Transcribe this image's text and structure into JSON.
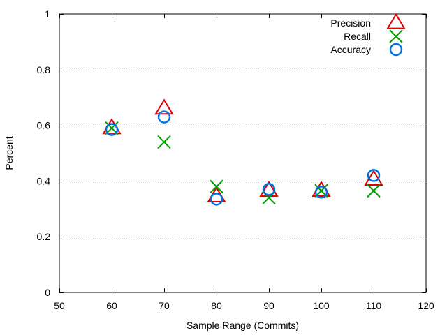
{
  "chart_data": {
    "type": "scatter",
    "title": "",
    "xlabel": "Sample Range (Commits)",
    "ylabel": "Percent",
    "xlim": [
      50,
      120
    ],
    "ylim": [
      0,
      1
    ],
    "x_ticks": [
      50,
      60,
      70,
      80,
      90,
      100,
      110,
      120
    ],
    "y_ticks": [
      0,
      0.2,
      0.4,
      0.6,
      0.8,
      1
    ],
    "x_tick_labels": [
      "50",
      "60",
      "70",
      "80",
      "90",
      "100",
      "110",
      "120"
    ],
    "y_tick_labels": [
      "0",
      "0.2",
      "0.4",
      "0.6",
      "0.8",
      "1"
    ],
    "grid": "horizontal-dotted",
    "legend_position": "top-right",
    "series": [
      {
        "name": "Precision",
        "marker": "triangle",
        "color": "#e00000",
        "x": [
          60,
          70,
          80,
          90,
          100,
          110
        ],
        "y": [
          0.59,
          0.66,
          0.345,
          0.365,
          0.365,
          0.405
        ]
      },
      {
        "name": "Recall",
        "marker": "cross",
        "color": "#00a000",
        "x": [
          60,
          70,
          80,
          90,
          100,
          110
        ],
        "y": [
          0.59,
          0.54,
          0.38,
          0.34,
          0.365,
          0.365
        ]
      },
      {
        "name": "Accuracy",
        "marker": "circle",
        "color": "#0070e0",
        "x": [
          60,
          70,
          80,
          90,
          100,
          110
        ],
        "y": [
          0.585,
          0.63,
          0.335,
          0.37,
          0.36,
          0.42
        ]
      }
    ]
  }
}
